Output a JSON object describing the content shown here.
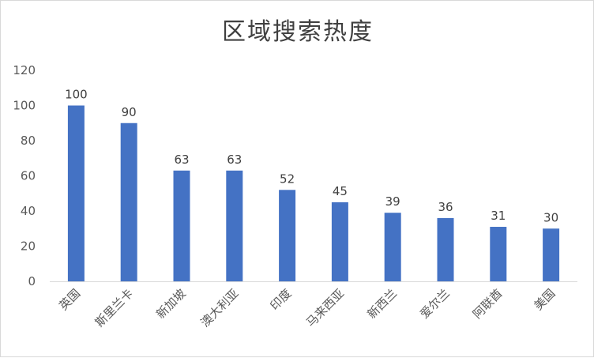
{
  "chart_data": {
    "type": "bar",
    "title": "区域搜索热度",
    "xlabel": "",
    "ylabel": "",
    "ylim": [
      0,
      120
    ],
    "yticks": [
      0,
      20,
      40,
      60,
      80,
      100,
      120
    ],
    "categories": [
      "英国",
      "斯里兰卡",
      "新加坡",
      "澳大利亚",
      "印度",
      "马来西亚",
      "新西兰",
      "爱尔兰",
      "阿联酋",
      "美国"
    ],
    "values": [
      100,
      90,
      63,
      63,
      52,
      45,
      39,
      36,
      31,
      30
    ],
    "data_labels": true,
    "grid": false,
    "legend": "none",
    "colors": {
      "bar": "#4472c4",
      "axis": "#d9d9d9",
      "text": "#595959"
    }
  }
}
